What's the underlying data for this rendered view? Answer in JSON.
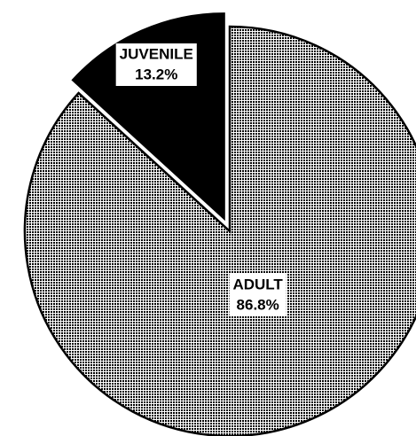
{
  "chart_data": {
    "type": "pie",
    "categories": [
      "ADULT",
      "JUVENILE"
    ],
    "values": [
      86.8,
      13.2
    ],
    "value_labels": [
      "86.8%",
      "13.2%"
    ],
    "colors": [
      "#7a7a7a",
      "#000000"
    ],
    "exploded": [
      false,
      true
    ]
  }
}
